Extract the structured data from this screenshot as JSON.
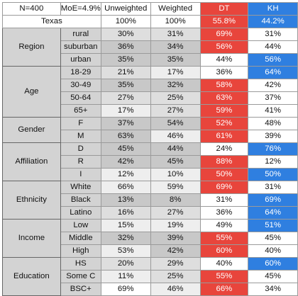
{
  "header": {
    "n": "N=400",
    "moe": "MoE=4.9%",
    "unweighted": "Unweighted",
    "weighted": "Weighted",
    "dt": "DT",
    "kh": "KH",
    "state": "Texas",
    "unweighted_total": "100%",
    "weighted_total": "100%",
    "dt_total": "55.8%",
    "kh_total": "44.2%"
  },
  "colors": {
    "dt": "#e8453c",
    "kh": "#2f7fe0",
    "group_bg": "#d3d3d3",
    "cell_white": "#ffffff",
    "shade_light": "#eeeeee",
    "shade_mid": "#dedede",
    "shade_dark": "#c8c8c8"
  },
  "groups": [
    {
      "name": "Region",
      "rows": [
        {
          "label": "rural",
          "unweighted": "30%",
          "weighted": "31%",
          "dt": "69%",
          "kh": "31%",
          "shade": [
            "mid",
            "mid"
          ],
          "win": "dt"
        },
        {
          "label": "suburban",
          "unweighted": "36%",
          "weighted": "34%",
          "dt": "56%",
          "kh": "44%",
          "shade": [
            "dark",
            "dark"
          ],
          "win": "dt"
        },
        {
          "label": "urban",
          "unweighted": "35%",
          "weighted": "35%",
          "dt": "44%",
          "kh": "56%",
          "shade": [
            "dark",
            "dark"
          ],
          "win": "kh"
        }
      ]
    },
    {
      "name": "Age",
      "rows": [
        {
          "label": "18-29",
          "unweighted": "21%",
          "weighted": "17%",
          "dt": "36%",
          "kh": "64%",
          "shade": [
            "mid",
            "light"
          ],
          "win": "kh"
        },
        {
          "label": "30-49",
          "unweighted": "35%",
          "weighted": "32%",
          "dt": "58%",
          "kh": "42%",
          "shade": [
            "dark",
            "dark"
          ],
          "win": "dt"
        },
        {
          "label": "50-64",
          "unweighted": "27%",
          "weighted": "25%",
          "dt": "63%",
          "kh": "37%",
          "shade": [
            "mid",
            "mid"
          ],
          "win": "dt"
        },
        {
          "label": "65+",
          "unweighted": "17%",
          "weighted": "27%",
          "dt": "59%",
          "kh": "41%",
          "shade": [
            "light",
            "mid"
          ],
          "win": "dt"
        }
      ]
    },
    {
      "name": "Gender",
      "rows": [
        {
          "label": "F",
          "unweighted": "37%",
          "weighted": "54%",
          "dt": "52%",
          "kh": "48%",
          "shade": [
            "dark",
            "dark"
          ],
          "win": "dt"
        },
        {
          "label": "M",
          "unweighted": "63%",
          "weighted": "46%",
          "dt": "61%",
          "kh": "39%",
          "shade": [
            "dark",
            "light"
          ],
          "win": "dt"
        }
      ]
    },
    {
      "name": "Affiliation",
      "rows": [
        {
          "label": "D",
          "unweighted": "45%",
          "weighted": "44%",
          "dt": "24%",
          "kh": "76%",
          "shade": [
            "dark",
            "dark"
          ],
          "win": "kh"
        },
        {
          "label": "R",
          "unweighted": "42%",
          "weighted": "45%",
          "dt": "88%",
          "kh": "12%",
          "shade": [
            "dark",
            "dark"
          ],
          "win": "dt"
        },
        {
          "label": "I",
          "unweighted": "12%",
          "weighted": "10%",
          "dt": "50%",
          "kh": "50%",
          "shade": [
            "light",
            "light"
          ],
          "win": "both"
        }
      ]
    },
    {
      "name": "Ethnicity",
      "rows": [
        {
          "label": "White",
          "unweighted": "66%",
          "weighted": "59%",
          "dt": "69%",
          "kh": "31%",
          "shade": [
            "light",
            "light"
          ],
          "win": "dt"
        },
        {
          "label": "Black",
          "unweighted": "13%",
          "weighted": "8%",
          "dt": "31%",
          "kh": "69%",
          "shade": [
            "dark",
            "dark"
          ],
          "win": "kh"
        },
        {
          "label": "Latino",
          "unweighted": "16%",
          "weighted": "27%",
          "dt": "36%",
          "kh": "64%",
          "shade": [
            "mid",
            "mid"
          ],
          "win": "kh"
        }
      ]
    },
    {
      "name": "Income",
      "rows": [
        {
          "label": "Low",
          "unweighted": "15%",
          "weighted": "19%",
          "dt": "49%",
          "kh": "51%",
          "shade": [
            "light",
            "light"
          ],
          "win": "kh"
        },
        {
          "label": "Middle",
          "unweighted": "32%",
          "weighted": "39%",
          "dt": "55%",
          "kh": "45%",
          "shade": [
            "dark",
            "dark"
          ],
          "win": "dt"
        },
        {
          "label": "High",
          "unweighted": "53%",
          "weighted": "42%",
          "dt": "60%",
          "kh": "40%",
          "shade": [
            "light",
            "dark"
          ],
          "win": "dt"
        }
      ]
    },
    {
      "name": "Education",
      "rows": [
        {
          "label": "HS",
          "unweighted": "20%",
          "weighted": "29%",
          "dt": "40%",
          "kh": "60%",
          "shade": [
            "mid",
            "mid"
          ],
          "win": "kh"
        },
        {
          "label": "Some C",
          "unweighted": "11%",
          "weighted": "25%",
          "dt": "55%",
          "kh": "45%",
          "shade": [
            "light",
            "mid"
          ],
          "win": "dt"
        },
        {
          "label": "BSC+",
          "unweighted": "69%",
          "weighted": "46%",
          "dt": "66%",
          "kh": "34%",
          "shade": [
            "white",
            "light"
          ],
          "win": "dt"
        }
      ]
    }
  ]
}
